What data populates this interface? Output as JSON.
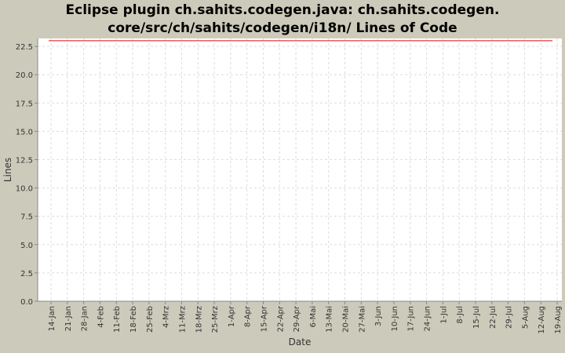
{
  "chart_data": {
    "type": "line",
    "title_lines": [
      "Eclipse plugin ch.sahits.codegen.java: ch.sahits.codegen.",
      "core/src/ch/sahits/codegen/i18n/ Lines of Code"
    ],
    "xlabel": "Date",
    "ylabel": "Lines",
    "ylim": [
      0,
      23.2
    ],
    "yticks": [
      "0.0",
      "2.5",
      "5.0",
      "7.5",
      "10.0",
      "12.5",
      "15.0",
      "17.5",
      "20.0",
      "22.5"
    ],
    "xticks": [
      "14-Jan",
      "21-Jan",
      "28-Jan",
      "4-Feb",
      "11-Feb",
      "18-Feb",
      "25-Feb",
      "4-Mrz",
      "11-Mrz",
      "18-Mrz",
      "25-Mrz",
      "1-Apr",
      "8-Apr",
      "15-Apr",
      "22-Apr",
      "29-Apr",
      "6-Mai",
      "13-Mai",
      "20-Mai",
      "27-Mai",
      "3-Jun",
      "10-Jun",
      "17-Jun",
      "24-Jun",
      "1-Jul",
      "8-Jul",
      "15-Jul",
      "22-Jul",
      "29-Jul",
      "5-Aug",
      "12-Aug",
      "19-Aug"
    ],
    "grid": true,
    "series": [
      {
        "x": [
          "13-Jan",
          "17-Aug"
        ],
        "values": [
          23,
          23
        ],
        "color": "#e8383d"
      }
    ]
  }
}
